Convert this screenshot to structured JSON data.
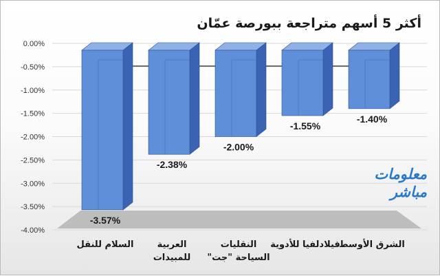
{
  "title": "أكثر 5 أسهم متراجعة ببورصة عمّان",
  "logo": {
    "line1": "معلومات",
    "line2": "مباشر"
  },
  "colors": {
    "bar_front": "#5f8fd8",
    "bar_side": "#3a64b3",
    "bar_top": "#8fb1e8",
    "floor": "#bdbdbd",
    "zero_line": "#222222",
    "grid": "#d7d7d7"
  },
  "chart_data": {
    "type": "bar",
    "title": "أكثر 5 أسهم متراجعة ببورصة عمّان",
    "categories": [
      [
        "السلام للنقل"
      ],
      [
        "العربية",
        "للمبيدات"
      ],
      [
        "النقليات",
        "السياحة \"جت\""
      ],
      [
        "فيلادلفيا للأدوية"
      ],
      [
        "الشرق الأوسط"
      ]
    ],
    "values": [
      -3.57,
      -2.38,
      -2.0,
      -1.55,
      -1.4
    ],
    "value_labels": [
      "-3.57%",
      "-2.38%",
      "-2.00%",
      "-1.55%",
      "-1.40%"
    ],
    "ylim": [
      -4.0,
      0.0
    ],
    "yticks": [
      "0.00%",
      "-0.50%",
      "-1.00%",
      "-1.50%",
      "-2.00%",
      "-2.50%",
      "-3.00%",
      "-3.50%",
      "-4.00%"
    ],
    "grid": true,
    "style": "3d-column"
  }
}
